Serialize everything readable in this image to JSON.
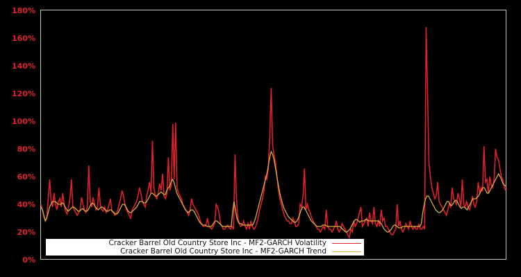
{
  "chart_data": {
    "type": "line",
    "title": "",
    "xlabel": "",
    "ylabel": "",
    "ylim": [
      0,
      180
    ],
    "yticks": [
      "0%",
      "20%",
      "40%",
      "60%",
      "80%",
      "100%",
      "120%",
      "140%",
      "160%",
      "180%"
    ],
    "grid": false,
    "legend_position": "lower-left inside plot",
    "background": "#000000",
    "series": [
      {
        "name": "Cracker Barrel Old Country Store Inc - MF2-GARCH Volatility",
        "color": "#e0202a",
        "values": [
          40,
          36,
          31,
          28,
          30,
          44,
          58,
          42,
          38,
          48,
          40,
          36,
          42,
          44,
          38,
          48,
          40,
          35,
          33,
          38,
          44,
          58,
          38,
          36,
          34,
          32,
          34,
          36,
          45,
          40,
          36,
          34,
          38,
          68,
          42,
          38,
          45,
          40,
          36,
          38,
          52,
          40,
          36,
          35,
          38,
          34,
          36,
          40,
          44,
          35,
          34,
          32,
          33,
          36,
          40,
          44,
          50,
          46,
          40,
          36,
          34,
          32,
          30,
          36,
          38,
          40,
          42,
          46,
          52,
          48,
          42,
          40,
          38,
          46,
          50,
          56,
          48,
          86,
          52,
          46,
          44,
          48,
          55,
          50,
          62,
          46,
          44,
          48,
          74,
          50,
          54,
          98,
          58,
          99,
          52,
          48,
          46,
          44,
          40,
          38,
          36,
          34,
          32,
          36,
          44,
          40,
          38,
          36,
          34,
          32,
          28,
          26,
          24,
          24,
          25,
          30,
          24,
          23,
          22,
          24,
          26,
          40,
          38,
          34,
          26,
          24,
          22,
          22,
          24,
          25,
          23,
          22,
          24,
          22,
          76,
          44,
          30,
          26,
          24,
          25,
          28,
          24,
          22,
          26,
          22,
          28,
          24,
          22,
          23,
          26,
          30,
          36,
          40,
          44,
          50,
          60,
          58,
          66,
          88,
          124,
          82,
          76,
          70,
          60,
          50,
          44,
          40,
          36,
          32,
          30,
          28,
          28,
          26,
          26,
          30,
          28,
          24,
          24,
          26,
          40,
          38,
          46,
          66,
          36,
          40,
          36,
          34,
          30,
          28,
          26,
          24,
          22,
          22,
          20,
          22,
          24,
          22,
          36,
          24,
          22,
          22,
          20,
          22,
          24,
          28,
          22,
          20,
          22,
          26,
          24,
          22,
          20,
          18,
          16,
          22,
          20,
          28,
          24,
          26,
          30,
          34,
          38,
          24,
          26,
          28,
          30,
          24,
          34,
          28,
          26,
          38,
          26,
          24,
          28,
          24,
          36,
          28,
          30,
          24,
          24,
          22,
          20,
          18,
          18,
          20,
          22,
          40,
          24,
          28,
          22,
          20,
          22,
          26,
          24,
          22,
          28,
          24,
          22,
          24,
          22,
          22,
          26,
          22,
          22,
          24,
          22,
          168,
          120,
          70,
          60,
          52,
          48,
          44,
          46,
          56,
          42,
          40,
          38,
          36,
          34,
          32,
          36,
          40,
          38,
          52,
          44,
          42,
          40,
          48,
          44,
          38,
          58,
          40,
          38,
          42,
          38,
          36,
          40,
          46,
          40,
          38,
          42,
          56,
          48,
          52,
          50,
          82,
          56,
          58,
          48,
          60,
          54,
          52,
          58,
          80,
          74,
          72,
          66,
          60,
          58,
          52,
          50
        ]
      },
      {
        "name": "Cracker Barrel Old Country Store Inc - MF2-GARCH Trend",
        "color": "#d8b040",
        "values": [
          38,
          36,
          32,
          28,
          30,
          34,
          38,
          40,
          42,
          42,
          42,
          41,
          40,
          40,
          40,
          41,
          40,
          38,
          36,
          35,
          36,
          37,
          38,
          38,
          37,
          36,
          35,
          35,
          36,
          37,
          36,
          35,
          35,
          36,
          38,
          40,
          41,
          40,
          38,
          37,
          36,
          37,
          38,
          38,
          37,
          36,
          35,
          35,
          36,
          36,
          35,
          34,
          33,
          33,
          34,
          36,
          38,
          40,
          40,
          39,
          37,
          35,
          34,
          34,
          35,
          36,
          37,
          38,
          40,
          42,
          42,
          42,
          41,
          41,
          42,
          44,
          46,
          48,
          48,
          47,
          46,
          46,
          47,
          48,
          49,
          48,
          47,
          47,
          50,
          52,
          53,
          56,
          58,
          56,
          52,
          48,
          46,
          44,
          42,
          40,
          38,
          36,
          35,
          34,
          35,
          36,
          36,
          35,
          33,
          31,
          29,
          27,
          26,
          25,
          25,
          25,
          24,
          24,
          24,
          24,
          25,
          27,
          28,
          28,
          27,
          26,
          25,
          24,
          24,
          24,
          24,
          24,
          24,
          24,
          34,
          42,
          36,
          30,
          27,
          26,
          26,
          25,
          25,
          25,
          25,
          25,
          25,
          25,
          25,
          27,
          30,
          34,
          38,
          42,
          46,
          50,
          54,
          58,
          62,
          68,
          74,
          78,
          76,
          72,
          66,
          60,
          54,
          48,
          44,
          40,
          37,
          35,
          33,
          31,
          30,
          29,
          28,
          27,
          27,
          28,
          30,
          33,
          36,
          38,
          38,
          36,
          34,
          32,
          30,
          28,
          27,
          26,
          25,
          24,
          24,
          24,
          24,
          25,
          25,
          25,
          24,
          24,
          24,
          24,
          24,
          24,
          24,
          24,
          24,
          24,
          23,
          22,
          21,
          20,
          20,
          21,
          22,
          24,
          26,
          28,
          29,
          29,
          28,
          27,
          28,
          28,
          28,
          29,
          29,
          28,
          28,
          28,
          28,
          28,
          28,
          28,
          28,
          27,
          26,
          24,
          22,
          21,
          20,
          20,
          21,
          22,
          24,
          25,
          25,
          24,
          23,
          23,
          23,
          24,
          24,
          24,
          24,
          24,
          24,
          24,
          24,
          24,
          24,
          24,
          24,
          24,
          26,
          34,
          40,
          44,
          46,
          46,
          44,
          42,
          40,
          38,
          36,
          35,
          34,
          34,
          35,
          36,
          38,
          40,
          42,
          42,
          40,
          39,
          40,
          42,
          43,
          42,
          40,
          38,
          37,
          38,
          38,
          37,
          36,
          38,
          40,
          42,
          44,
          44,
          44,
          45,
          46,
          48,
          50,
          52,
          52,
          50,
          48,
          48,
          50,
          52,
          54,
          56,
          58,
          60,
          62,
          60,
          58,
          55,
          54,
          53
        ]
      }
    ]
  },
  "legend": {
    "items": [
      {
        "label": "Cracker Barrel Old Country Store Inc - MF2-GARCH Volatility",
        "color": "#e0202a"
      },
      {
        "label": "Cracker Barrel Old Country Store Inc - MF2-GARCH Trend",
        "color": "#d8b040"
      }
    ]
  }
}
